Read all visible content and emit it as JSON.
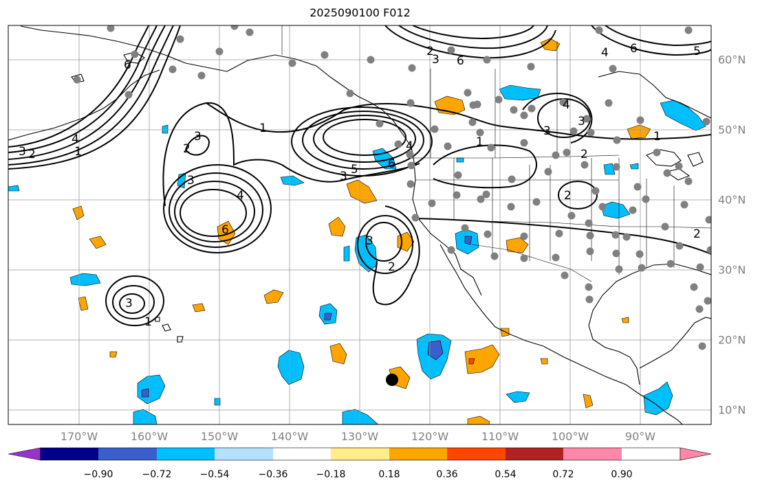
{
  "title": "2025090100 F012",
  "lon_labels": [
    "170°W",
    "160°W",
    "150°W",
    "140°W",
    "130°W",
    "120°W",
    "110°W",
    "100°W",
    "90°W"
  ],
  "lat_labels": [
    "60°N",
    "50°N",
    "40°N",
    "30°N",
    "20°N",
    "10°N"
  ],
  "colorbar": {
    "ticks": [
      "−0.90",
      "−0.72",
      "−0.54",
      "−0.36",
      "−0.18",
      "0.18",
      "0.36",
      "0.54",
      "0.72",
      "0.90"
    ],
    "colors": [
      "#9932cc",
      "#00008b",
      "#3a5fcd",
      "#00bfff",
      "#b2e2ff",
      "#ffffff",
      "#ffec8b",
      "#ffa500",
      "#ff4500",
      "#b22222",
      "#ff88aa"
    ]
  },
  "contour_labels": [
    "1",
    "2",
    "3",
    "4",
    "5",
    "6"
  ],
  "colors": {
    "grid": "#999999",
    "station": "#808080",
    "coast": "#000000",
    "contour": "#000000"
  }
}
